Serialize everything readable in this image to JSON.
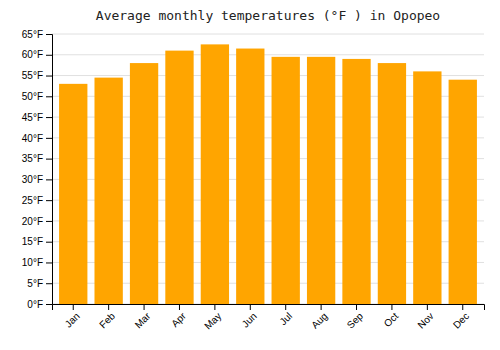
{
  "chart_data": {
    "type": "bar",
    "title": "Average monthly temperatures (°F ) in Opopeo",
    "categories": [
      "Jan",
      "Feb",
      "Mar",
      "Apr",
      "May",
      "Jun",
      "Jul",
      "Aug",
      "Sep",
      "Oct",
      "Nov",
      "Dec"
    ],
    "values": [
      53.0,
      54.5,
      58.0,
      61.0,
      62.5,
      61.5,
      59.5,
      59.5,
      59.0,
      58.0,
      56.0,
      54.0
    ],
    "color": "#FFA500",
    "ylim": [
      0,
      65
    ],
    "yticks": [
      {
        "value": 0,
        "label": "0°F"
      },
      {
        "value": 5,
        "label": "5°F"
      },
      {
        "value": 10,
        "label": "10°F"
      },
      {
        "value": 15,
        "label": "15°F"
      },
      {
        "value": 20,
        "label": "20°F"
      },
      {
        "value": 25,
        "label": "25°F"
      },
      {
        "value": 30,
        "label": "30°F"
      },
      {
        "value": 35,
        "label": "35°F"
      },
      {
        "value": 40,
        "label": "40°F"
      },
      {
        "value": 45,
        "label": "45°F"
      },
      {
        "value": 50,
        "label": "50°F"
      },
      {
        "value": 55,
        "label": "55°F"
      },
      {
        "value": 60,
        "label": "60°F"
      },
      {
        "value": 65,
        "label": "65°F"
      }
    ],
    "grid": true
  }
}
